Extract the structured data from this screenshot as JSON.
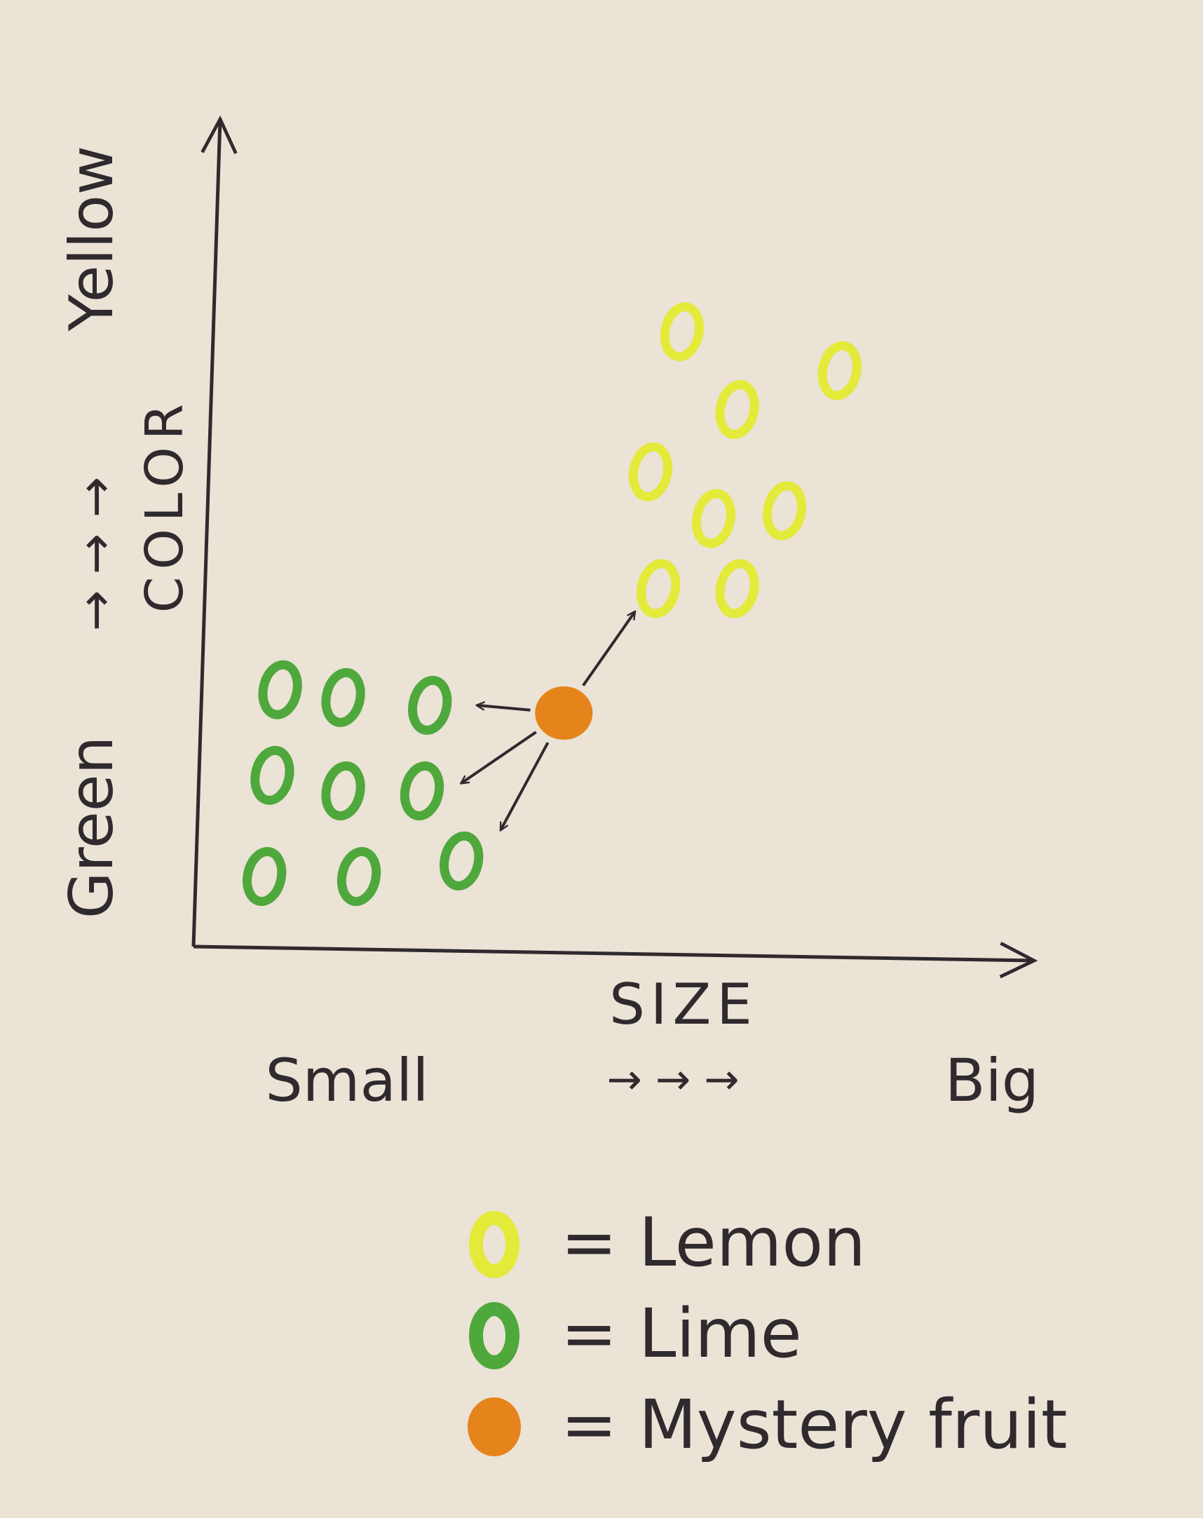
{
  "colors": {
    "ink": "#2f2a2e",
    "lemon": "#e3ea3a",
    "lime": "#4fa83c",
    "mystery": "#e5841a",
    "paper": "#ebe3d6"
  },
  "chart_data": {
    "type": "scatter",
    "title": "",
    "xlabel": "SIZE",
    "ylabel": "COLOR",
    "x_scale_labels": [
      "Small",
      "Big"
    ],
    "y_scale_labels": [
      "Green",
      "Yellow"
    ],
    "xlim": [
      0,
      10
    ],
    "ylim": [
      0,
      10
    ],
    "grid": false,
    "legend_placement": "bottom-center",
    "series": [
      {
        "name": "Lemon",
        "color": "#e3ea3a",
        "marker": "ring",
        "points": [
          [
            6.2,
            7.9
          ],
          [
            8.2,
            7.4
          ],
          [
            6.9,
            6.9
          ],
          [
            5.8,
            6.1
          ],
          [
            6.6,
            5.5
          ],
          [
            7.5,
            5.6
          ],
          [
            5.9,
            4.6
          ],
          [
            6.9,
            4.6
          ]
        ]
      },
      {
        "name": "Lime",
        "color": "#4fa83c",
        "marker": "ring",
        "points": [
          [
            1.1,
            3.3
          ],
          [
            1.9,
            3.2
          ],
          [
            3.0,
            3.1
          ],
          [
            1.0,
            2.2
          ],
          [
            1.9,
            2.0
          ],
          [
            2.9,
            2.0
          ],
          [
            0.9,
            0.9
          ],
          [
            2.1,
            0.9
          ],
          [
            3.4,
            1.1
          ]
        ]
      },
      {
        "name": "Mystery fruit",
        "color": "#e5841a",
        "marker": "filled",
        "points": [
          [
            4.7,
            3.0
          ]
        ]
      }
    ],
    "annotations": [
      {
        "type": "arrow",
        "from": "Mystery fruit",
        "to": [
          5.6,
          4.3
        ]
      },
      {
        "type": "arrow",
        "from": "Mystery fruit",
        "to": [
          3.6,
          3.1
        ]
      },
      {
        "type": "arrow",
        "from": "Mystery fruit",
        "to": [
          3.4,
          2.1
        ]
      },
      {
        "type": "arrow",
        "from": "Mystery fruit",
        "to": [
          3.9,
          1.5
        ]
      }
    ],
    "legend": [
      {
        "label": "= Lemon",
        "series": "Lemon"
      },
      {
        "label": "= Lime",
        "series": "Lime"
      },
      {
        "label": "= Mystery fruit",
        "series": "Mystery fruit"
      }
    ]
  }
}
